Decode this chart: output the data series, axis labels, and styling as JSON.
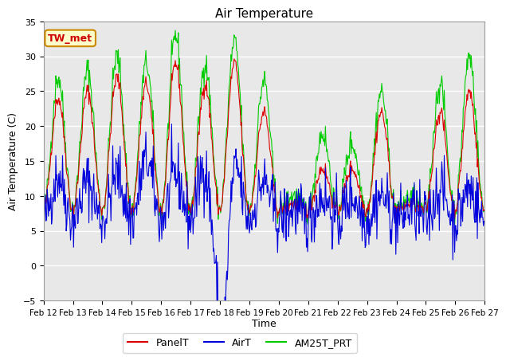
{
  "title": "Air Temperature",
  "ylabel": "Air Temperature (C)",
  "xlabel": "Time",
  "annotation": "TW_met",
  "ylim": [
    -5,
    35
  ],
  "yticks": [
    -5,
    0,
    5,
    10,
    15,
    20,
    25,
    30,
    35
  ],
  "bg_color": "#e8e8e8",
  "fig_color": "#ffffff",
  "legend": [
    "PanelT",
    "AirT",
    "AM25T_PRT"
  ],
  "line_colors": [
    "#dd0000",
    "#0000dd",
    "#00cc00"
  ],
  "x_tick_labels": [
    "Feb 12",
    "Feb 13",
    "Feb 14",
    "Feb 15",
    "Feb 16",
    "Feb 17",
    "Feb 18",
    "Feb 19",
    "Feb 20",
    "Feb 21",
    "Feb 22",
    "Feb 23",
    "Feb 24",
    "Feb 25",
    "Feb 26",
    "Feb 27"
  ],
  "seed": 42,
  "n_days": 15,
  "pts_per_day": 48
}
